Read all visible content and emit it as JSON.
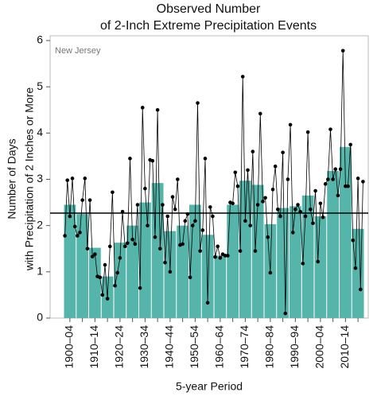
{
  "chart_data": {
    "type": "bar",
    "title": [
      "Observed Number",
      "of 2-Inch Extreme Precipitation Events"
    ],
    "ylabel": [
      "Number of Days",
      "with Precipitation of 2 Inches or More"
    ],
    "xlabel": "5-year Period",
    "annotation": "New Jersey",
    "categories": [
      "1900–04",
      null,
      "1910–14",
      null,
      "1920–24",
      null,
      "1930–34",
      null,
      "1940–44",
      null,
      "1950–54",
      null,
      "1960–64",
      null,
      "1970–74",
      null,
      "1980–84",
      null,
      "1990–94",
      null,
      "2000–04",
      null,
      "2010–14",
      null
    ],
    "series": [
      {
        "color": "#56b5aa",
        "values": [
          2.45,
          2.25,
          1.52,
          0.9,
          1.63,
          2.0,
          2.5,
          2.92,
          1.88,
          2.0,
          2.45,
          1.8,
          1.35,
          2.45,
          2.97,
          2.88,
          2.03,
          2.38,
          2.42,
          2.65,
          2.2,
          3.18,
          3.7,
          1.93
        ]
      }
    ],
    "annual": {
      "color": "#000000",
      "values": [
        1.78,
        2.98,
        2.2,
        3.02,
        1.98,
        1.78,
        1.85,
        2.55,
        3.02,
        1.5,
        2.55,
        1.33,
        1.38,
        0.9,
        0.88,
        0.5,
        1.15,
        0.42,
        1.55,
        2.72,
        0.7,
        0.98,
        1.3,
        2.3,
        1.55,
        1.62,
        3.45,
        1.7,
        1.6,
        2.45,
        0.65,
        4.55,
        2.8,
        2.0,
        3.42,
        3.4,
        1.75,
        4.5,
        1.5,
        2.45,
        1.2,
        2.2,
        1.0,
        2.62,
        2.35,
        3.0,
        1.58,
        1.6,
        2.1,
        2.25,
        0.88,
        2.0,
        2.1,
        4.65,
        1.45,
        1.9,
        3.45,
        0.33,
        2.4,
        2.2,
        1.32,
        1.55,
        1.3,
        1.38,
        1.35,
        1.35,
        2.5,
        2.48,
        3.15,
        2.85,
        1.45,
        5.22,
        2.1,
        3.2,
        2.0,
        3.6,
        1.45,
        2.45,
        4.42,
        2.52,
        2.6,
        1.75,
        0.98,
        2.78,
        3.28,
        2.35,
        2.2,
        3.58,
        0.1,
        3.0,
        4.18,
        1.85,
        2.35,
        2.45,
        2.3,
        1.18,
        2.2,
        4.02,
        2.35,
        2.05,
        2.75,
        1.22,
        2.48,
        2.18,
        2.9,
        3.0,
        4.08,
        3.0,
        3.22,
        2.65,
        3.22,
        5.78,
        2.85,
        2.85,
        3.75,
        1.68,
        1.08,
        3.02,
        0.62,
        2.95
      ]
    },
    "mean": 2.27,
    "ylim": [
      0,
      6
    ],
    "yticks": [
      0,
      1,
      2,
      3,
      4,
      5,
      6
    ]
  }
}
